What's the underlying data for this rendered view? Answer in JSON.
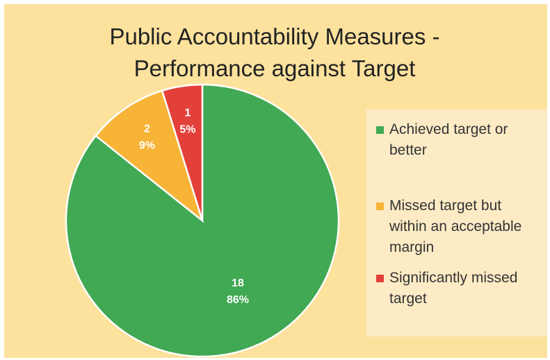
{
  "chart_data": {
    "type": "pie",
    "title": [
      "Public Accountability Measures -",
      "Performance against Target"
    ],
    "categories": [
      "Achieved target or better",
      "Missed target but within an acceptable margin",
      "Significantly missed target"
    ],
    "values": [
      18,
      2,
      1
    ],
    "percent_labels": [
      "86%",
      "9%",
      "5%"
    ],
    "colors": [
      "#41a853",
      "#f7b436",
      "#e3403a"
    ],
    "legend": "right"
  }
}
